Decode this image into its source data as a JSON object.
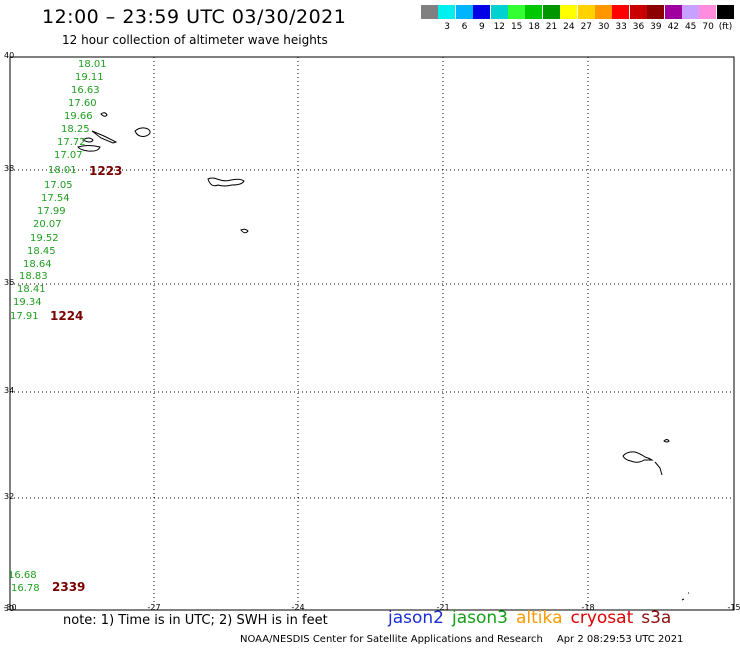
{
  "header": {
    "title": "12:00 – 23:59 UTC 03/30/2021",
    "subtitle": "12 hour collection of altimeter wave heights"
  },
  "legend": {
    "swatches": [
      {
        "color": "#808080",
        "label": ""
      },
      {
        "color": "#00f0f0",
        "label": "3"
      },
      {
        "color": "#00b4ff",
        "label": "6"
      },
      {
        "color": "#0000e6",
        "label": "9"
      },
      {
        "color": "#00d2d2",
        "label": "12"
      },
      {
        "color": "#33ff33",
        "label": "15"
      },
      {
        "color": "#00c800",
        "label": "18"
      },
      {
        "color": "#009600",
        "label": "21"
      },
      {
        "color": "#ffff00",
        "label": "24"
      },
      {
        "color": "#ffd200",
        "label": "27"
      },
      {
        "color": "#ff9600",
        "label": "30"
      },
      {
        "color": "#ff0000",
        "label": "33"
      },
      {
        "color": "#c80000",
        "label": "36"
      },
      {
        "color": "#8c0000",
        "label": "39"
      },
      {
        "color": "#a000a0",
        "label": "42"
      },
      {
        "color": "#c8a0ff",
        "label": "45"
      },
      {
        "color": "#ff8cdc",
        "label": "70"
      },
      {
        "color": "#000000",
        "label": "(ft)"
      }
    ]
  },
  "map": {
    "lat_labels": [
      "40",
      "38",
      "36",
      "34",
      "32",
      "30"
    ],
    "lon_labels": [
      "-30",
      "-27",
      "-24",
      "-21",
      "-18",
      "-15"
    ],
    "swh_readings": [
      "18.01",
      "19.11",
      "16.63",
      "17.60",
      "19.66",
      "18.25",
      "17.72",
      "17.07",
      "18.01",
      "17.05",
      "17.54",
      "17.99",
      "20.07",
      "19.52",
      "18.45",
      "18.64",
      "18.83",
      "18.41",
      "19.34",
      "17.91",
      "16.68",
      "16.78"
    ],
    "pass_times": [
      "1223",
      "1224",
      "2339"
    ],
    "colors": {
      "swh": "#1f9e1f",
      "pass_time": "#7a0000"
    }
  },
  "footer": {
    "note": "note: 1) Time is in UTC; 2) SWH is in feet",
    "satellites": [
      {
        "name": "jason2",
        "color": "#1c2fd6"
      },
      {
        "name": "jason3",
        "color": "#14a014"
      },
      {
        "name": "altika",
        "color": "#ff9900"
      },
      {
        "name": "cryosat",
        "color": "#e00000"
      },
      {
        "name": "s3a",
        "color": "#8a1010"
      }
    ],
    "credit": "NOAA/NESDIS Center for Satellite Applications and Research",
    "timestamp": "Apr  2 08:29:53 UTC 2021"
  }
}
